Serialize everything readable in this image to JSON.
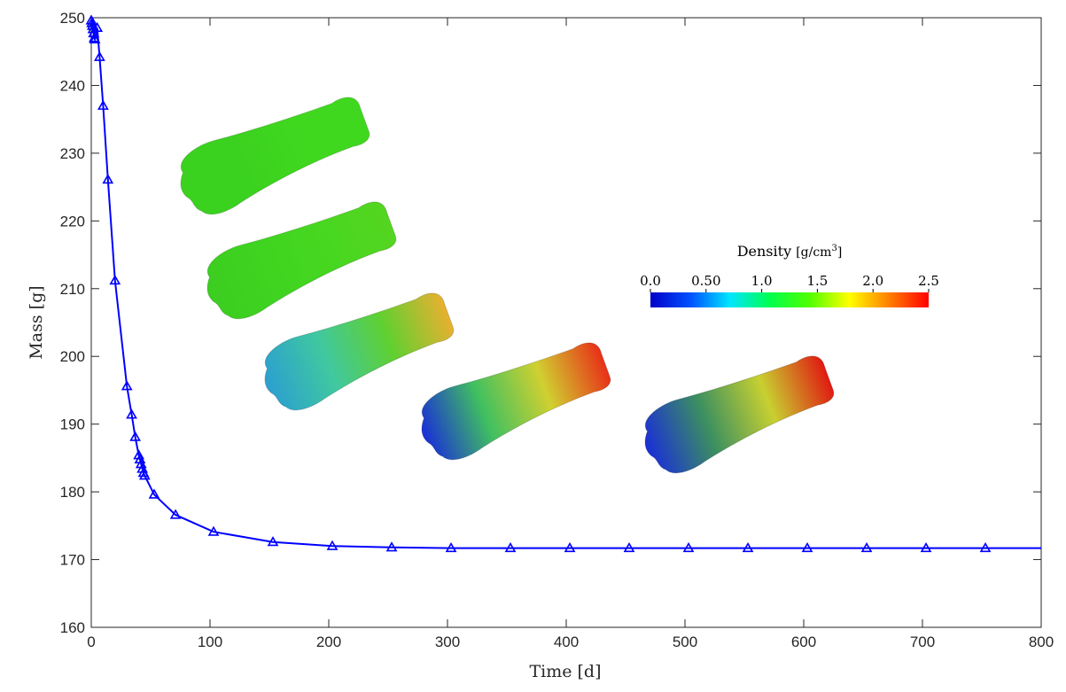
{
  "chart_data": {
    "type": "line",
    "xlabel": "Time [d]",
    "ylabel": "Mass [g]",
    "xlim": [
      0,
      800
    ],
    "ylim": [
      160,
      250
    ],
    "x_ticks": [
      "0",
      "100",
      "200",
      "300",
      "400",
      "500",
      "600",
      "700",
      "800"
    ],
    "y_ticks": [
      "160",
      "170",
      "180",
      "190",
      "200",
      "210",
      "220",
      "230",
      "240",
      "250"
    ],
    "grid": false,
    "series": [
      {
        "marker": "triangle",
        "color": "#0000ff",
        "points": [
          [
            0,
            249.6
          ],
          [
            0.5,
            249.2
          ],
          [
            1,
            248.8
          ],
          [
            1.5,
            248.3
          ],
          [
            2,
            247.7
          ],
          [
            2.5,
            247.0
          ],
          [
            3,
            246.8
          ],
          [
            5,
            248.5
          ],
          [
            7,
            244.2
          ],
          [
            10,
            237.0
          ],
          [
            14,
            226.1
          ],
          [
            20,
            211.2
          ],
          [
            30,
            195.6
          ],
          [
            34,
            191.4
          ],
          [
            37,
            188.1
          ],
          [
            40,
            185.4
          ],
          [
            41,
            184.8
          ],
          [
            42,
            184.1
          ],
          [
            43,
            183.4
          ],
          [
            44,
            182.8
          ],
          [
            45,
            182.4
          ],
          [
            53,
            179.6
          ],
          [
            71,
            176.6
          ],
          [
            103,
            174.1
          ],
          [
            153,
            172.6
          ],
          [
            203,
            172.0
          ],
          [
            253,
            171.8
          ],
          [
            303,
            171.7
          ],
          [
            353,
            171.7
          ],
          [
            403,
            171.7
          ],
          [
            453,
            171.7
          ],
          [
            503,
            171.7
          ],
          [
            553,
            171.7
          ],
          [
            603,
            171.7
          ],
          [
            653,
            171.7
          ],
          [
            703,
            171.7
          ],
          [
            753,
            171.7
          ]
        ],
        "line_extends_to": 800
      }
    ],
    "colorbar": {
      "title": "Density",
      "unit_base": "[g/cm",
      "unit_exp": "3",
      "unit_close": "]",
      "min": 0.0,
      "max": 2.5,
      "tick_labels": [
        "0.0",
        "0.50",
        "1.0",
        "1.5",
        "2.0",
        "2.5"
      ],
      "tick_values": [
        0.0,
        0.5,
        1.0,
        1.5,
        2.0,
        2.5
      ],
      "colormap": [
        "#0000c8",
        "#0050ff",
        "#00e6ff",
        "#00ff50",
        "#50ff00",
        "#ffff00",
        "#ff8000",
        "#ff0000"
      ]
    },
    "insets": [
      {
        "name": "bone-0",
        "colors": [
          "#3bd11f",
          "#3bd11f",
          "#40d81f",
          "#40d81f"
        ]
      },
      {
        "name": "bone-1",
        "colors": [
          "#3ccd20",
          "#3fd420",
          "#48d720",
          "#55d520"
        ]
      },
      {
        "name": "bone-2",
        "colors": [
          "#2b9fd0",
          "#40c8a0",
          "#60d030",
          "#e8b030"
        ]
      },
      {
        "name": "bone-3",
        "colors": [
          "#1a2ed8",
          "#40c060",
          "#d0d030",
          "#e83018"
        ]
      },
      {
        "name": "bone-4",
        "colors": [
          "#1a2ed8",
          "#3c9060",
          "#c8d030",
          "#e01a12"
        ]
      }
    ]
  }
}
